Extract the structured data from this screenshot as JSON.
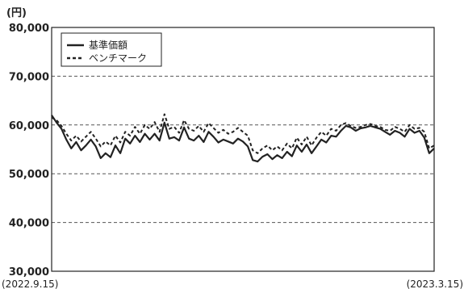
{
  "chart_data": {
    "type": "line",
    "unit_label": "(円)",
    "ylim": [
      30000,
      80000
    ],
    "y_ticks": [
      30000,
      40000,
      50000,
      60000,
      70000,
      80000
    ],
    "y_tick_labels": [
      "30,000",
      "40,000",
      "50,000",
      "60,000",
      "70,000",
      "80,000"
    ],
    "x_start_label": "(2022.9.15)",
    "x_end_label": "(2023.3.15)",
    "grid": "horizontal dashed",
    "legend_position": "top-left",
    "series": [
      {
        "name": "基準価額",
        "style": "solid",
        "color": "#222222",
        "values": [
          62000,
          60500,
          59200,
          57000,
          55200,
          56500,
          54800,
          55800,
          57000,
          55600,
          53200,
          54200,
          53400,
          55800,
          54200,
          57200,
          56200,
          57800,
          56500,
          58200,
          57000,
          58200,
          56800,
          60500,
          57200,
          57500,
          56800,
          59500,
          57200,
          56800,
          57800,
          56500,
          58600,
          57600,
          56400,
          57000,
          56600,
          56200,
          57200,
          56600,
          55600,
          52800,
          52500,
          53500,
          54000,
          53000,
          53800,
          53200,
          54500,
          53600,
          55800,
          54500,
          56000,
          54200,
          55600,
          57000,
          56400,
          57800,
          57600,
          58800,
          59800,
          59500,
          58800,
          59300,
          59500,
          59800,
          59500,
          59200,
          58600,
          58000,
          58800,
          58400,
          57600,
          59200,
          58400,
          58800,
          57400,
          54200,
          55200
        ]
      },
      {
        "name": "ベンチマーク",
        "style": "dashed",
        "color": "#222222",
        "values": [
          61500,
          61000,
          59800,
          58200,
          56800,
          57800,
          56600,
          57600,
          58600,
          57200,
          55600,
          56600,
          55800,
          57800,
          56400,
          58600,
          57800,
          59600,
          58200,
          60000,
          59200,
          60600,
          58600,
          62200,
          59200,
          59600,
          58400,
          61000,
          59200,
          58800,
          59800,
          58600,
          60400,
          59400,
          58400,
          59000,
          58200,
          58600,
          59400,
          58600,
          57800,
          54800,
          54200,
          55200,
          55800,
          54800,
          55600,
          54800,
          56200,
          55200,
          57400,
          56000,
          57600,
          55800,
          57400,
          58600,
          57800,
          59200,
          58800,
          60000,
          60400,
          59800,
          59400,
          59600,
          60000,
          60200,
          59800,
          59600,
          59000,
          58800,
          59600,
          59200,
          58600,
          60000,
          59200,
          59400,
          58600,
          55200,
          55800
        ]
      }
    ]
  }
}
